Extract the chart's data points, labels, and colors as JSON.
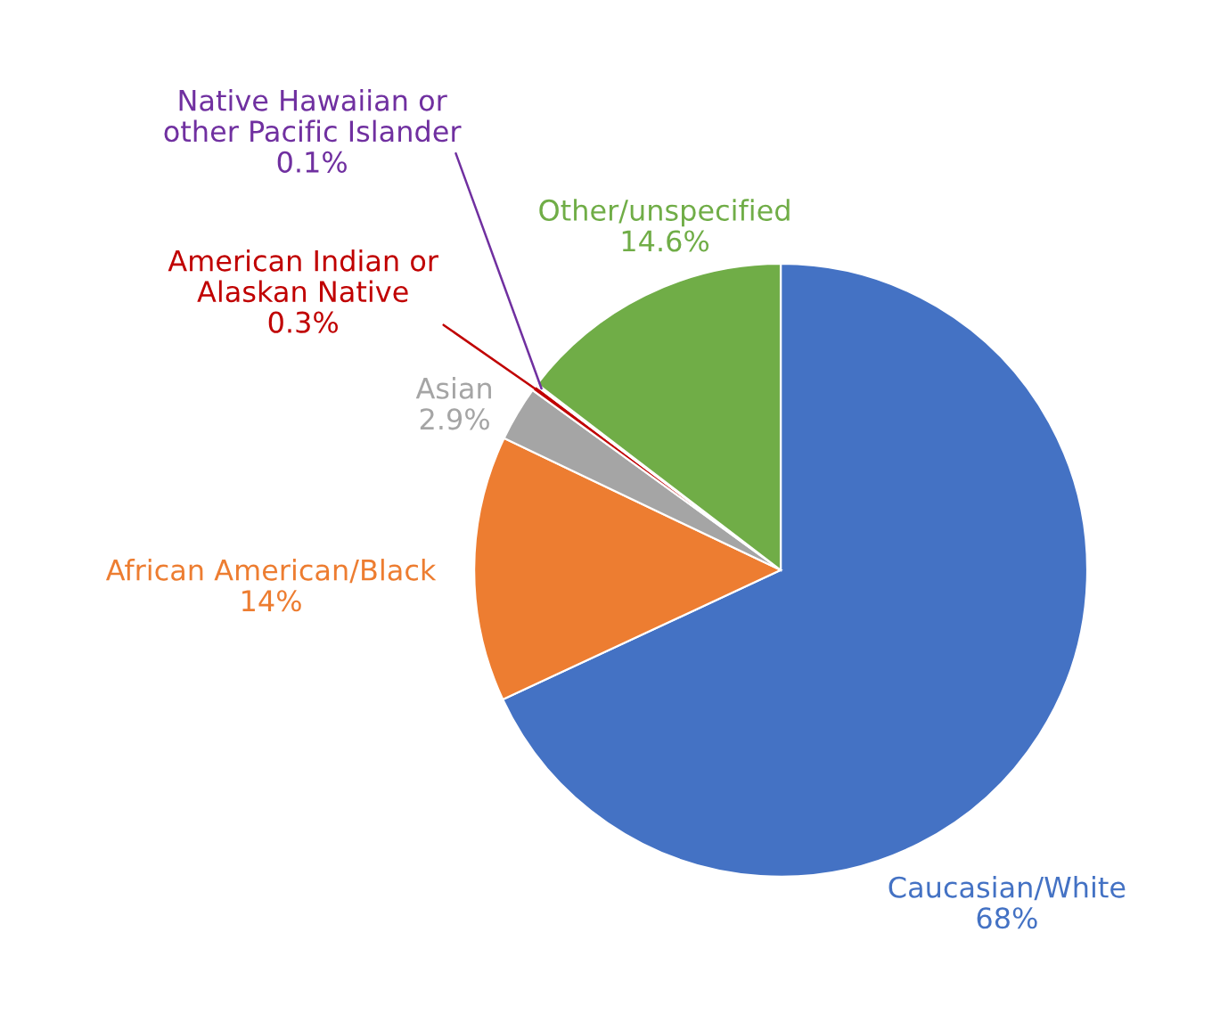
{
  "chart_data": {
    "type": "pie",
    "categories": [
      "Caucasian/White",
      "African American/Black",
      "Asian",
      "American Indian or\nAlaskan Native",
      "Native Hawaiian or\nother Pacific Islander",
      "Other/unspecified"
    ],
    "values": [
      68,
      14,
      2.9,
      0.3,
      0.1,
      14.6
    ],
    "colors": [
      "#4472c4",
      "#ed7d31",
      "#a5a5a5",
      "#c00000",
      "#7030a0",
      "#70ad47"
    ],
    "value_labels": [
      "68%",
      "14%",
      "2.9%",
      "0.3%",
      "0.1%",
      "14.6%"
    ]
  }
}
